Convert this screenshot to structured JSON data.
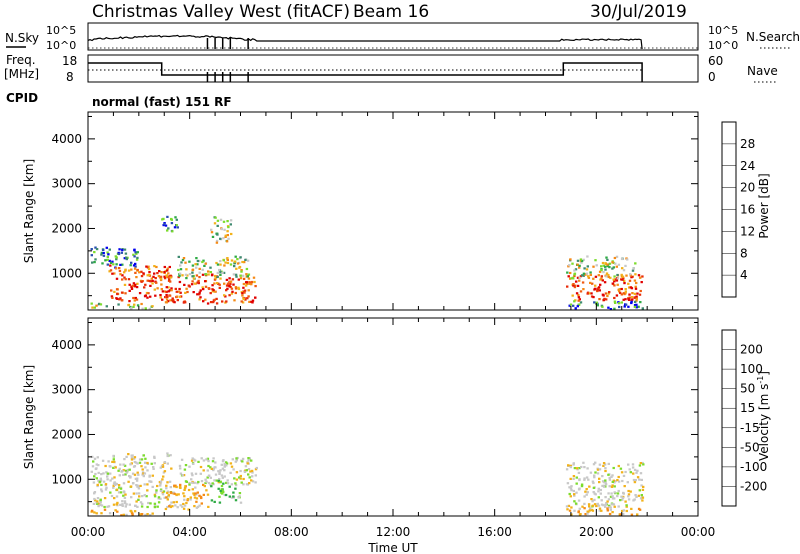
{
  "header": {
    "title": "Christmas Valley West (fitACF)",
    "beam": "Beam 16",
    "date": "30/Jul/2019"
  },
  "nsky_panel": {
    "left_label": "N.Sky",
    "right_label": "N.Search",
    "left_ticks": [
      "10^5",
      "10^0"
    ],
    "right_ticks": [
      "10^5",
      "10^0"
    ]
  },
  "freq_panel": {
    "left_label_line1": "Freq.",
    "left_label_line2": "[MHz]",
    "right_label": "Nave",
    "left_ticks": [
      "18",
      "8"
    ],
    "right_ticks": [
      "60",
      "0"
    ]
  },
  "cpid": {
    "label": "CPID",
    "mode": "normal (fast) 151 RF"
  },
  "colors": {
    "scale": [
      "#0000ee",
      "#2a50b0",
      "#3f8a70",
      "#2eaa44",
      "#7cdc2c",
      "#c8c8c8",
      "#f2b21a",
      "#f58a16",
      "#f05a10",
      "#e82a08",
      "#e00000"
    ]
  },
  "chart_data": [
    {
      "type": "heatmap",
      "name": "power",
      "ylabel": "Slant Range [km]",
      "ylim": [
        180,
        4600
      ],
      "yticks": [
        "4000",
        "3000",
        "2000",
        "1000"
      ],
      "ytick_values": [
        4000,
        3000,
        2000,
        1000
      ],
      "xlim": [
        0,
        24
      ],
      "colorbar": {
        "label": "Power [dB]",
        "ticks": [
          "28",
          "24",
          "20",
          "16",
          "12",
          "8",
          "4"
        ],
        "colors": [
          "#0000ee",
          "#2a50b0",
          "#3f8a70",
          "#2eaa44",
          "#7cdc2c",
          "#c8c8c8",
          "#f2b21a",
          "#f58a16",
          "#f05a10",
          "#e82a08",
          "#e00000"
        ]
      },
      "regions": [
        {
          "t0": 0.1,
          "t1": 2.0,
          "r0": 1150,
          "r1": 1600,
          "level": "low"
        },
        {
          "t0": 0.8,
          "t1": 3.3,
          "r0": 400,
          "r1": 1200,
          "level": "high"
        },
        {
          "t0": 0.0,
          "t1": 2.5,
          "r0": 220,
          "r1": 350,
          "level": "mid"
        },
        {
          "t0": 3.0,
          "t1": 6.6,
          "r0": 350,
          "r1": 1000,
          "level": "high"
        },
        {
          "t0": 3.5,
          "t1": 6.3,
          "r0": 900,
          "r1": 1400,
          "level": "mid"
        },
        {
          "t0": 4.8,
          "t1": 5.6,
          "r0": 1700,
          "r1": 2300,
          "level": "mid"
        },
        {
          "t0": 2.8,
          "t1": 3.5,
          "r0": 1900,
          "r1": 2300,
          "level": "low"
        },
        {
          "t0": 18.8,
          "t1": 21.8,
          "r0": 400,
          "r1": 1000,
          "level": "high"
        },
        {
          "t0": 18.8,
          "t1": 21.5,
          "r0": 900,
          "r1": 1400,
          "level": "mid"
        },
        {
          "t0": 18.8,
          "t1": 21.8,
          "r0": 220,
          "r1": 400,
          "level": "low"
        }
      ]
    },
    {
      "type": "heatmap",
      "name": "velocity",
      "ylabel": "Slant Range [km]",
      "xlabel": "Time UT",
      "ylim": [
        180,
        4600
      ],
      "yticks": [
        "4000",
        "3000",
        "2000",
        "1000"
      ],
      "ytick_values": [
        4000,
        3000,
        2000,
        1000
      ],
      "xlim": [
        0,
        24
      ],
      "xticks": [
        "00:00",
        "04:00",
        "08:00",
        "12:00",
        "16:00",
        "20:00",
        "00:00"
      ],
      "colorbar": {
        "label": "Velocity [m s",
        "label_sup": "-1",
        "label_end": "]",
        "ticks": [
          "200",
          "100",
          "50",
          "15",
          "-15",
          "-50",
          "-100",
          "-200"
        ],
        "colors": [
          "#e00000",
          "#f04a10",
          "#f58a16",
          "#f2b21a",
          "#c8c8c8",
          "#c8c8c8",
          "#7cdc2c",
          "#2eaa44",
          "#3f8a70",
          "#2a50b0",
          "#0000ee"
        ]
      },
      "regions": [
        {
          "t0": 0.1,
          "t1": 3.3,
          "r0": 400,
          "r1": 1600,
          "level": "gray"
        },
        {
          "t0": 3.5,
          "t1": 6.6,
          "r0": 900,
          "r1": 1500,
          "level": "gray"
        },
        {
          "t0": 3.0,
          "t1": 4.8,
          "r0": 350,
          "r1": 900,
          "level": "orange"
        },
        {
          "t0": 4.8,
          "t1": 6.0,
          "r0": 500,
          "r1": 1000,
          "level": "green"
        },
        {
          "t0": 0.0,
          "t1": 2.5,
          "r0": 220,
          "r1": 350,
          "level": "orange"
        },
        {
          "t0": 18.8,
          "t1": 21.8,
          "r0": 400,
          "r1": 1400,
          "level": "gray"
        },
        {
          "t0": 18.8,
          "t1": 21.8,
          "r0": 220,
          "r1": 400,
          "level": "orange"
        }
      ]
    }
  ]
}
